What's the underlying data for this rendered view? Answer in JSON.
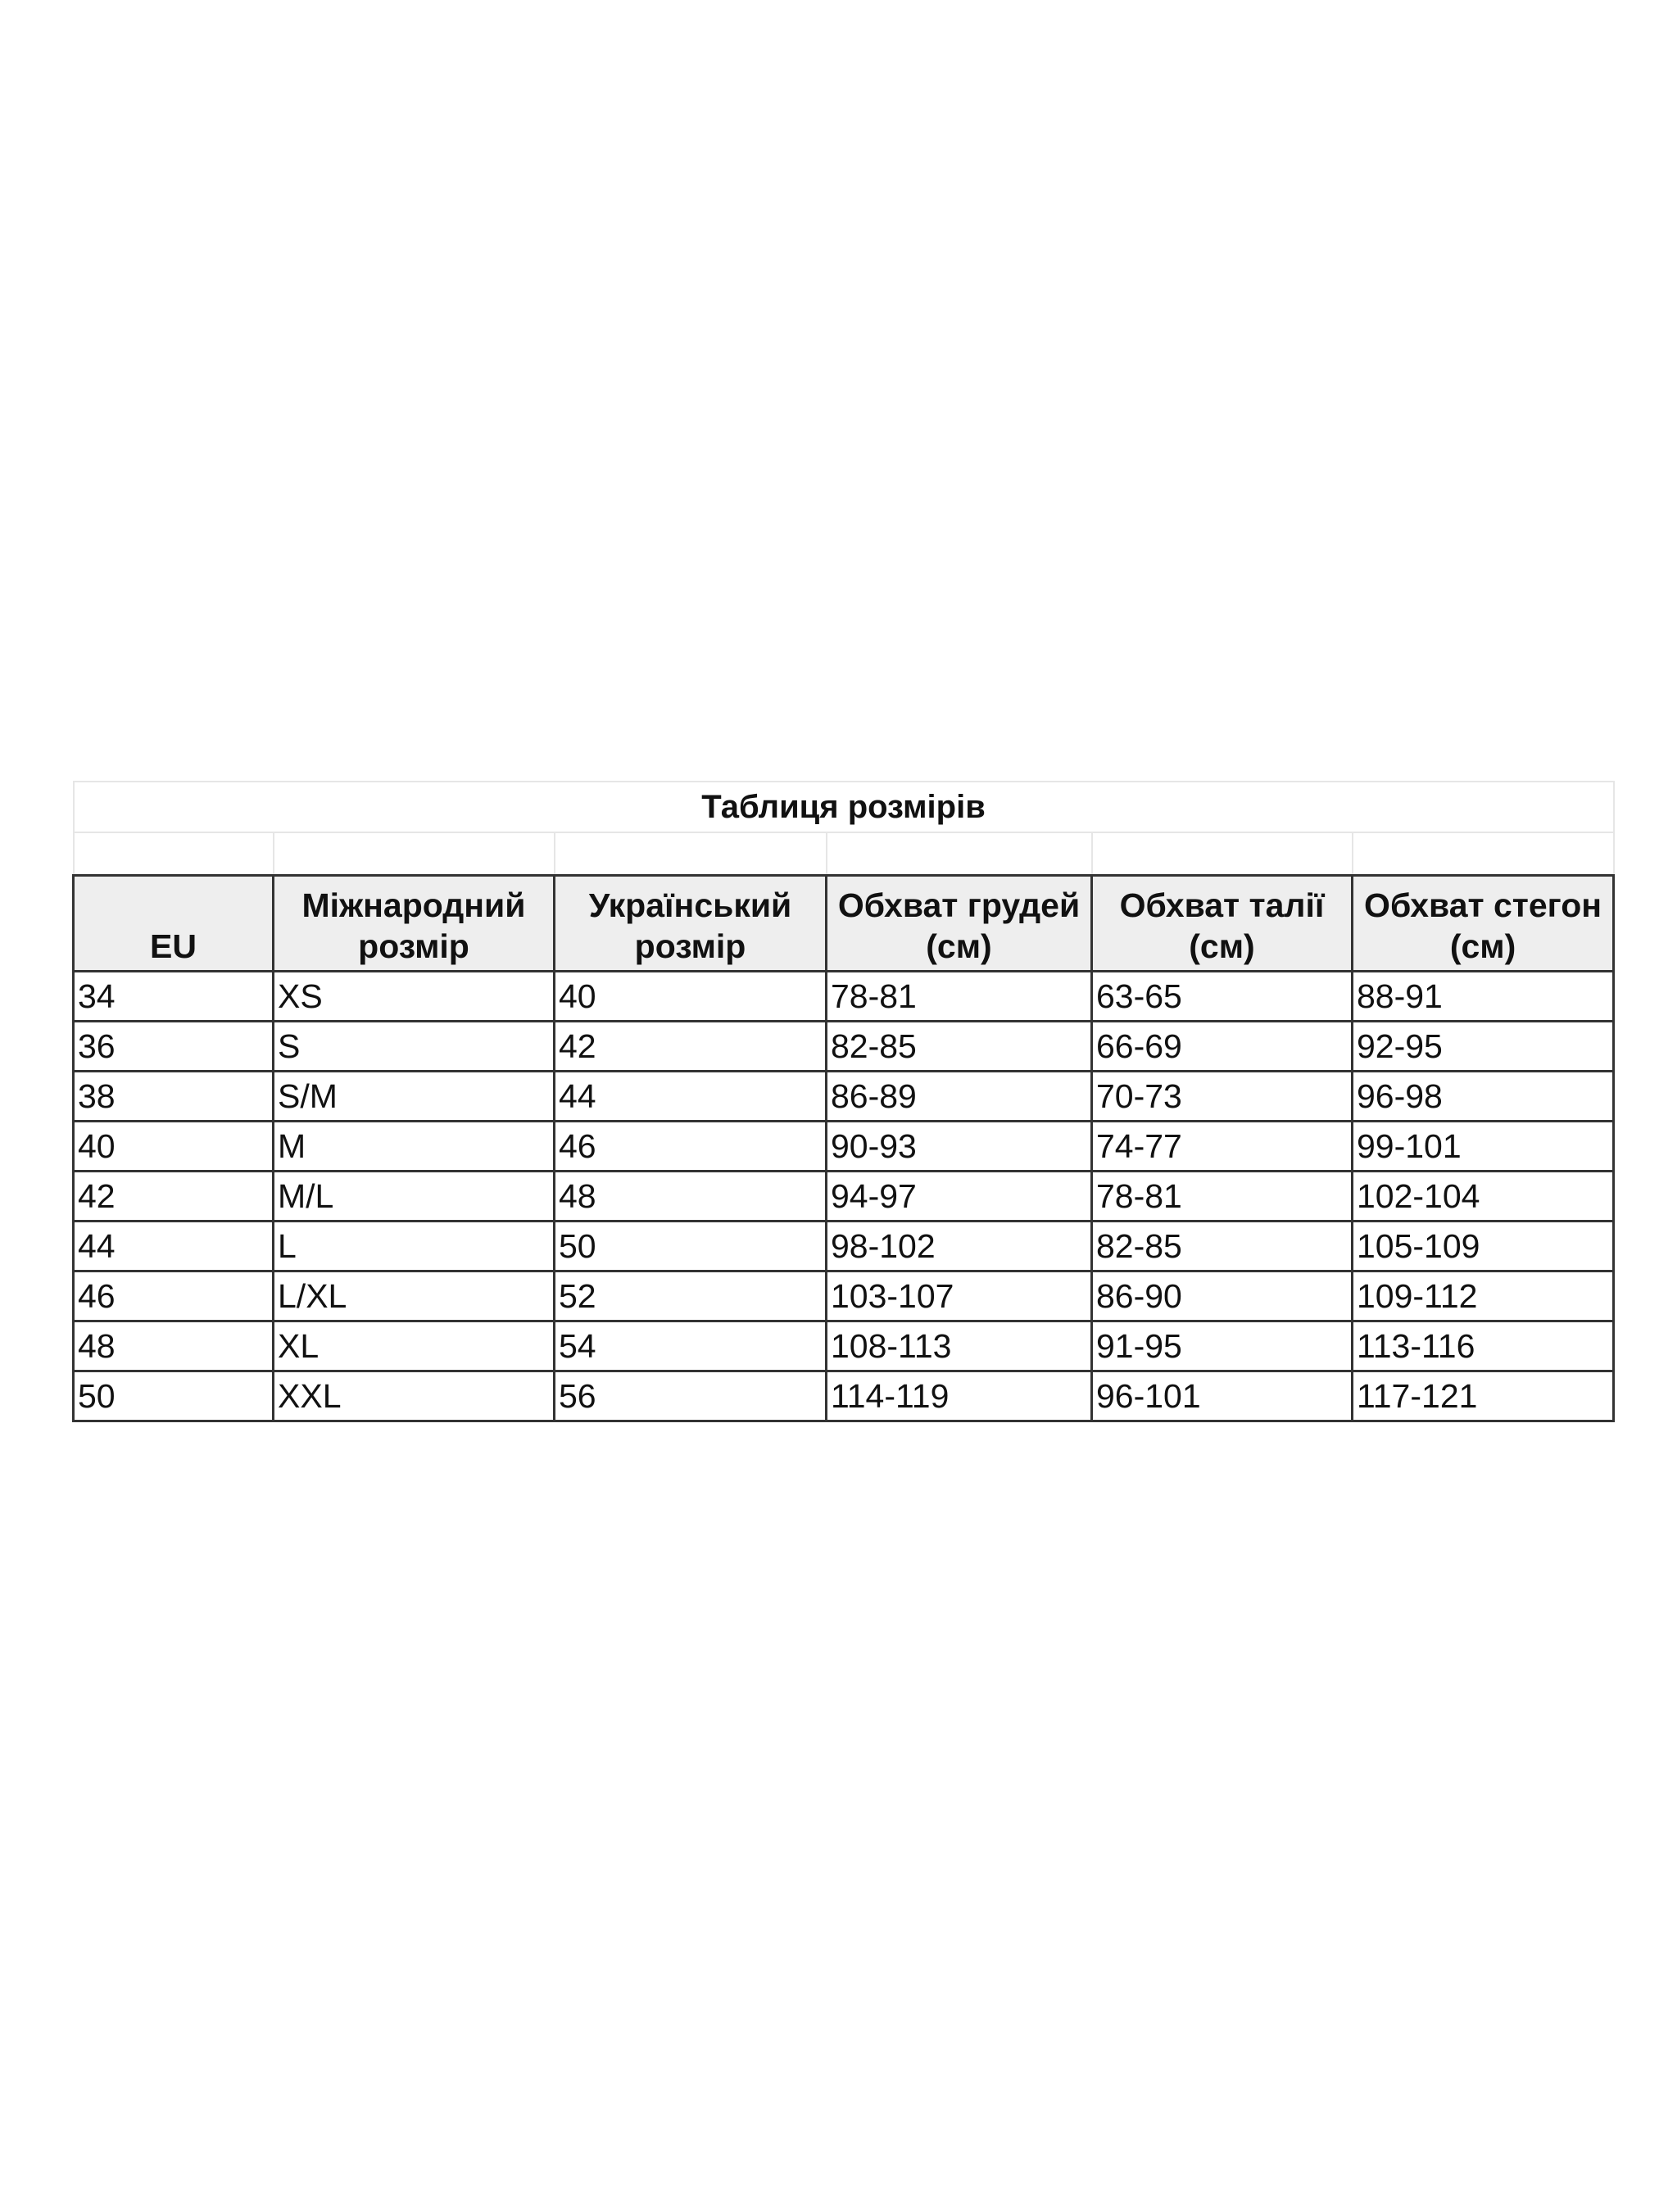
{
  "title": "Таблиця розмірів",
  "headers": [
    "EU",
    "Міжнародний розмір",
    "Український розмір",
    "Обхват грудей (см)",
    "Обхват талії (см)",
    "Обхват стегон (см)"
  ],
  "rows": [
    [
      "34",
      "XS",
      "40",
      "78-81",
      "63-65",
      "88-91"
    ],
    [
      "36",
      "S",
      "42",
      "82-85",
      "66-69",
      "92-95"
    ],
    [
      "38",
      "S/M",
      "44",
      "86-89",
      "70-73",
      "96-98"
    ],
    [
      "40",
      "M",
      "46",
      "90-93",
      "74-77",
      "99-101"
    ],
    [
      "42",
      "M/L",
      "48",
      "94-97",
      "78-81",
      "102-104"
    ],
    [
      "44",
      "L",
      "50",
      "98-102",
      "82-85",
      "105-109"
    ],
    [
      "46",
      "L/XL",
      "52",
      "103-107",
      "86-90",
      "109-112"
    ],
    [
      "48",
      "XL",
      "54",
      "108-113",
      "91-95",
      "113-116"
    ],
    [
      "50",
      "XXL",
      "56",
      "114-119",
      "96-101",
      "117-121"
    ]
  ],
  "colors": {
    "header_bg": "#eeeeee",
    "border": "#333333"
  }
}
